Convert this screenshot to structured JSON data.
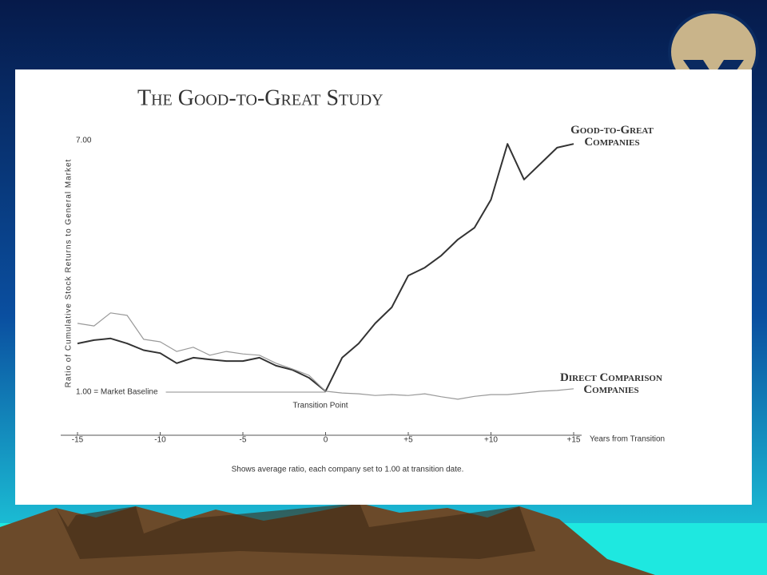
{
  "chart_data": {
    "type": "line",
    "title": "The Good-to-Great Study",
    "y_label": "Ratio of Cumulative Stock Returns to General Market",
    "x_label": "Years from Transition",
    "annotation": "Transition Point",
    "note": "Shows average ratio, each company set to 1.00 at transition date.",
    "x": [
      -15,
      -14,
      -13,
      -12,
      -11,
      -10,
      -9,
      -8,
      -7,
      -6,
      -5,
      -4,
      -3,
      -2,
      -1,
      0,
      1,
      2,
      3,
      4,
      5,
      6,
      7,
      8,
      9,
      10,
      11,
      12,
      13,
      14,
      15
    ],
    "series": [
      {
        "name": "Good-to-Great Companies",
        "color": "#333333",
        "values": [
          2.16,
          2.24,
          2.28,
          2.16,
          2.0,
          1.93,
          1.69,
          1.82,
          1.78,
          1.74,
          1.74,
          1.82,
          1.63,
          1.53,
          1.34,
          1.02,
          1.82,
          2.16,
          2.64,
          3.02,
          3.78,
          3.97,
          4.26,
          4.64,
          4.92,
          5.59,
          6.92,
          6.07,
          6.45,
          6.83,
          6.92
        ]
      },
      {
        "name": "Direct Comparison Companies",
        "color": "#999999",
        "values": [
          2.64,
          2.58,
          2.89,
          2.83,
          2.26,
          2.2,
          1.97,
          2.07,
          1.88,
          1.97,
          1.91,
          1.88,
          1.69,
          1.55,
          1.4,
          1.02,
          0.98,
          0.96,
          0.92,
          0.94,
          0.92,
          0.96,
          0.89,
          0.83,
          0.9,
          0.94,
          0.94,
          0.98,
          1.02,
          1.04,
          1.08
        ]
      }
    ],
    "xlim": [
      -15,
      15
    ],
    "ylim": [
      0,
      7.3
    ],
    "xticks": [
      -15,
      -10,
      -5,
      0,
      {
        "value": 5,
        "label": "+5"
      },
      {
        "value": 10,
        "label": "+10"
      },
      {
        "value": 15,
        "label": "+15"
      }
    ],
    "yticks": [
      {
        "value": 1,
        "label": "1.00 = Market Baseline"
      },
      {
        "value": 7,
        "label": "7.00"
      }
    ]
  }
}
